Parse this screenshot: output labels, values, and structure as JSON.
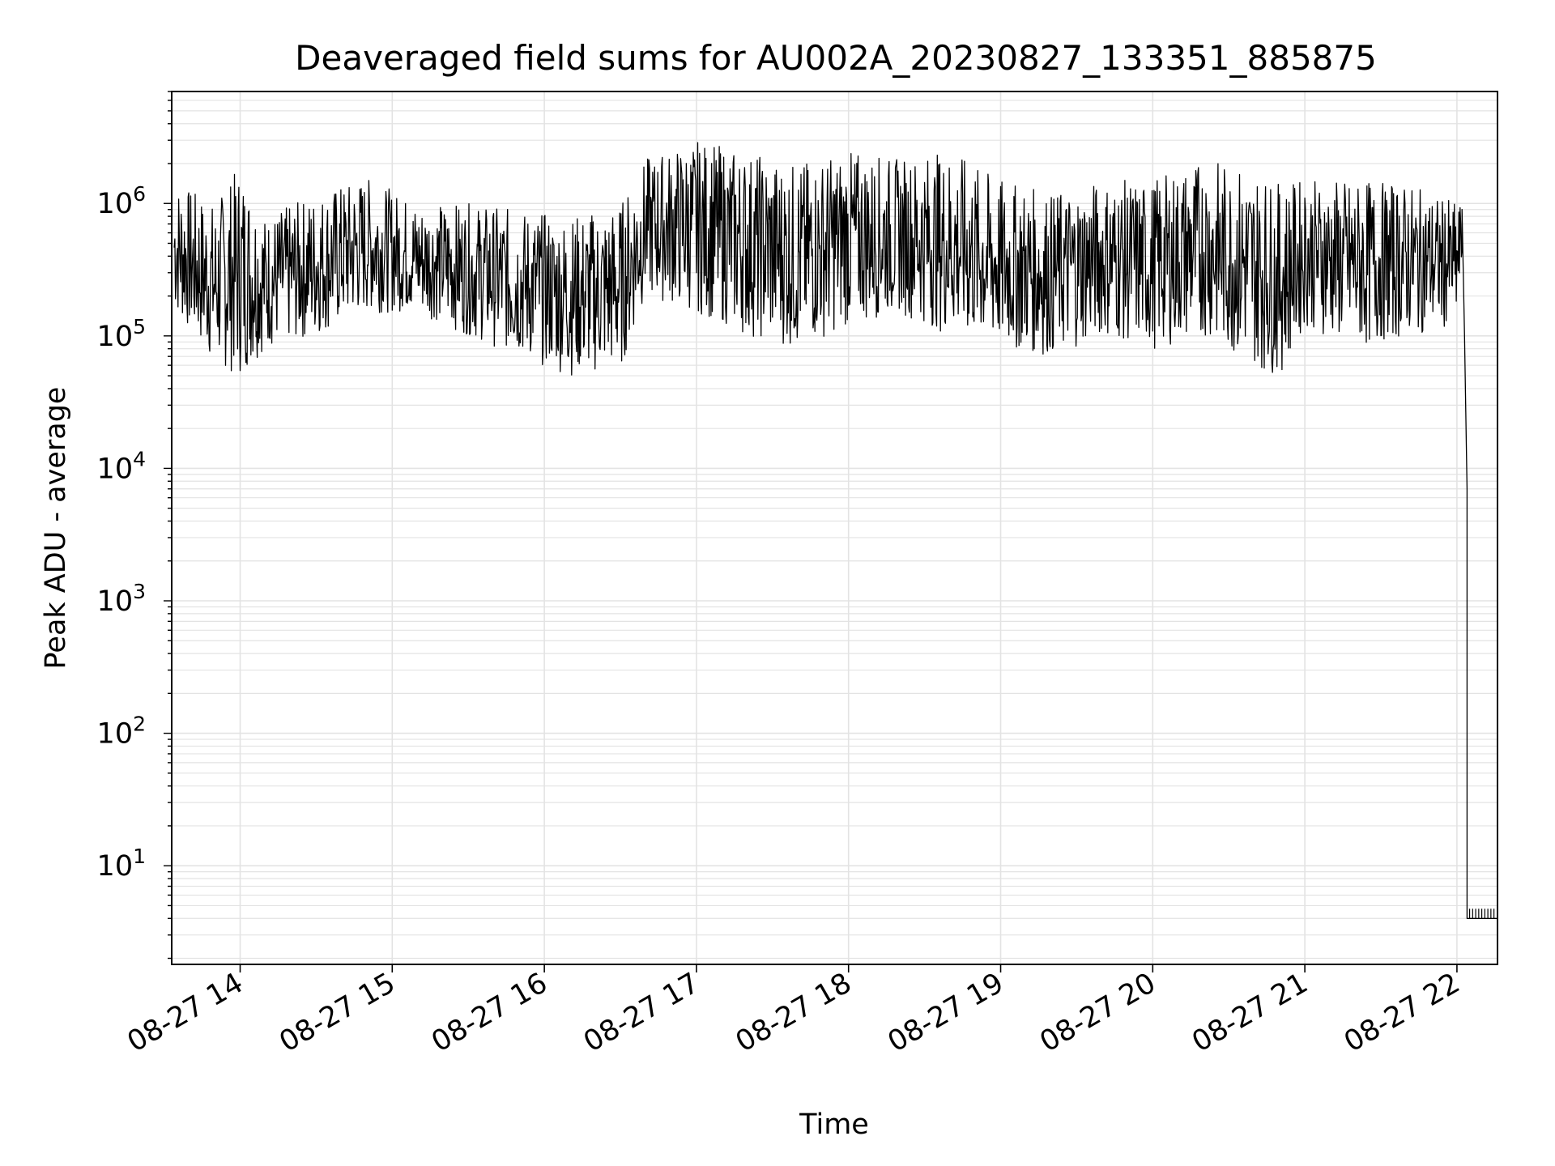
{
  "chart_data": {
    "type": "line",
    "title": "Deaveraged field sums for AU002A_20230827_133351_885875",
    "xlabel": "Time",
    "ylabel": "Peak ADU - average",
    "yscale": "log",
    "grid": true,
    "xlim": [
      "08-27 13:33",
      "08-27 22:16"
    ],
    "ylim": [
      1.8,
      7000000
    ],
    "x_ticks": [
      {
        "time": "08-27 14:00",
        "label": "08-27 14"
      },
      {
        "time": "08-27 15:00",
        "label": "08-27 15"
      },
      {
        "time": "08-27 16:00",
        "label": "08-27 16"
      },
      {
        "time": "08-27 17:00",
        "label": "08-27 17"
      },
      {
        "time": "08-27 18:00",
        "label": "08-27 18"
      },
      {
        "time": "08-27 19:00",
        "label": "08-27 19"
      },
      {
        "time": "08-27 20:00",
        "label": "08-27 20"
      },
      {
        "time": "08-27 21:00",
        "label": "08-27 21"
      },
      {
        "time": "08-27 22:00",
        "label": "08-27 22"
      }
    ],
    "y_ticks": [
      {
        "value": 10,
        "base": "10",
        "exponent": "1"
      },
      {
        "value": 100,
        "base": "10",
        "exponent": "2"
      },
      {
        "value": 1000,
        "base": "10",
        "exponent": "3"
      },
      {
        "value": 10000,
        "base": "10",
        "exponent": "4"
      },
      {
        "value": 100000,
        "base": "10",
        "exponent": "5"
      },
      {
        "value": 1000000,
        "base": "10",
        "exponent": "6"
      }
    ],
    "series": [
      {
        "color": "#000000",
        "points": [
          [
            "08-27 13:34",
            400000
          ],
          [
            "08-27 13:40",
            900000
          ],
          [
            "08-27 13:46",
            250000
          ],
          [
            "08-27 13:52",
            350000
          ],
          [
            "08-27 14:00",
            300000
          ],
          [
            "08-27 14:06",
            1500000
          ],
          [
            "08-27 14:12",
            250000
          ],
          [
            "08-27 14:18",
            350000
          ],
          [
            "08-27 14:24",
            500000
          ],
          [
            "08-27 14:30",
            600000
          ],
          [
            "08-27 14:36",
            550000
          ],
          [
            "08-27 14:42",
            500000
          ],
          [
            "08-27 14:48",
            700000
          ],
          [
            "08-27 14:54",
            800000
          ],
          [
            "08-27 15:00",
            500000
          ],
          [
            "08-27 15:06",
            600000
          ],
          [
            "08-27 15:12",
            450000
          ],
          [
            "08-27 15:18",
            550000
          ],
          [
            "08-27 15:24",
            500000
          ],
          [
            "08-27 15:30",
            400000
          ],
          [
            "08-27 15:36",
            500000
          ],
          [
            "08-27 15:42",
            350000
          ],
          [
            "08-27 15:48",
            450000
          ],
          [
            "08-27 15:54",
            300000
          ],
          [
            "08-27 16:00",
            250000
          ],
          [
            "08-27 16:06",
            200000
          ],
          [
            "08-27 16:12",
            180000
          ],
          [
            "08-27 16:18",
            200000
          ],
          [
            "08-27 16:24",
            220000
          ],
          [
            "08-27 16:30",
            200000
          ],
          [
            "08-27 16:36",
            600000
          ],
          [
            "08-27 16:42",
            1000000
          ],
          [
            "08-27 16:48",
            700000
          ],
          [
            "08-27 16:54",
            600000
          ],
          [
            "08-27 17:00",
            900000
          ],
          [
            "08-27 17:06",
            1200000
          ],
          [
            "08-27 17:12",
            1000000
          ],
          [
            "08-27 17:18",
            800000
          ],
          [
            "08-27 17:24",
            600000
          ],
          [
            "08-27 17:30",
            700000
          ],
          [
            "08-27 17:36",
            800000
          ],
          [
            "08-27 17:42",
            600000
          ],
          [
            "08-27 17:48",
            800000
          ],
          [
            "08-27 17:54",
            700000
          ],
          [
            "08-27 18:00",
            600000
          ],
          [
            "08-27 18:06",
            900000
          ],
          [
            "08-27 18:12",
            1000000
          ],
          [
            "08-27 18:18",
            800000
          ],
          [
            "08-27 18:24",
            700000
          ],
          [
            "08-27 18:30",
            500000
          ],
          [
            "08-27 18:36",
            600000
          ],
          [
            "08-27 18:42",
            800000
          ],
          [
            "08-27 18:48",
            700000
          ],
          [
            "08-27 18:54",
            500000
          ],
          [
            "08-27 19:00",
            400000
          ],
          [
            "08-27 19:06",
            350000
          ],
          [
            "08-27 19:12",
            400000
          ],
          [
            "08-27 19:18",
            450000
          ],
          [
            "08-27 19:24",
            400000
          ],
          [
            "08-27 19:30",
            500000
          ],
          [
            "08-27 19:36",
            600000
          ],
          [
            "08-27 19:42",
            500000
          ],
          [
            "08-27 19:48",
            600000
          ],
          [
            "08-27 19:54",
            500000
          ],
          [
            "08-27 20:00",
            450000
          ],
          [
            "08-27 20:06",
            900000
          ],
          [
            "08-27 20:12",
            1200000
          ],
          [
            "08-27 20:18",
            800000
          ],
          [
            "08-27 20:24",
            700000
          ],
          [
            "08-27 20:30",
            500000
          ],
          [
            "08-27 20:36",
            450000
          ],
          [
            "08-27 20:42",
            250000
          ],
          [
            "08-27 20:48",
            150000
          ],
          [
            "08-27 20:54",
            400000
          ],
          [
            "08-27 21:00",
            500000
          ],
          [
            "08-27 21:06",
            600000
          ],
          [
            "08-27 21:12",
            400000
          ],
          [
            "08-27 21:18",
            550000
          ],
          [
            "08-27 21:24",
            500000
          ],
          [
            "08-27 21:30",
            450000
          ],
          [
            "08-27 21:36",
            600000
          ],
          [
            "08-27 21:42",
            500000
          ],
          [
            "08-27 21:48",
            500000
          ],
          [
            "08-27 21:54",
            2000000
          ],
          [
            "08-27 21:58",
            400000
          ],
          [
            "08-27 22:00",
            800000
          ],
          [
            "08-27 22:02",
            900000
          ],
          [
            "08-27 22:03",
            100000
          ],
          [
            "08-27 22:04",
            7000
          ],
          [
            "08-27 22:04",
            4
          ],
          [
            "08-27 22:16",
            4
          ]
        ],
        "envelope": {
          "resolution_minutes": 1,
          "low_anchors": [
            [
              "08-27 13:34",
              150000
            ],
            [
              "08-27 13:50",
              60000
            ],
            [
              "08-27 14:00",
              50000
            ],
            [
              "08-27 14:10",
              80000
            ],
            [
              "08-27 14:30",
              100000
            ],
            [
              "08-27 14:50",
              150000
            ],
            [
              "08-27 15:10",
              150000
            ],
            [
              "08-27 15:30",
              100000
            ],
            [
              "08-27 15:50",
              70000
            ],
            [
              "08-27 16:10",
              50000
            ],
            [
              "08-27 16:30",
              55000
            ],
            [
              "08-27 16:40",
              200000
            ],
            [
              "08-27 17:00",
              150000
            ],
            [
              "08-27 17:20",
              100000
            ],
            [
              "08-27 17:40",
              80000
            ],
            [
              "08-27 18:00",
              120000
            ],
            [
              "08-27 18:20",
              150000
            ],
            [
              "08-27 18:40",
              100000
            ],
            [
              "08-27 19:00",
              80000
            ],
            [
              "08-27 19:20",
              70000
            ],
            [
              "08-27 19:40",
              100000
            ],
            [
              "08-27 20:00",
              80000
            ],
            [
              "08-27 20:20",
              100000
            ],
            [
              "08-27 20:40",
              60000
            ],
            [
              "08-27 20:50",
              50000
            ],
            [
              "08-27 21:00",
              120000
            ],
            [
              "08-27 21:20",
              80000
            ],
            [
              "08-27 21:40",
              100000
            ],
            [
              "08-27 22:00",
              120000
            ],
            [
              "08-27 22:02",
              300000
            ]
          ],
          "high_anchors": [
            [
              "08-27 13:34",
              1500000
            ],
            [
              "08-27 13:50",
              1000000
            ],
            [
              "08-27 14:00",
              2000000
            ],
            [
              "08-27 14:10",
              800000
            ],
            [
              "08-27 14:30",
              1200000
            ],
            [
              "08-27 14:50",
              1600000
            ],
            [
              "08-27 15:10",
              1000000
            ],
            [
              "08-27 15:30",
              1000000
            ],
            [
              "08-27 15:50",
              900000
            ],
            [
              "08-27 16:10",
              800000
            ],
            [
              "08-27 16:30",
              1000000
            ],
            [
              "08-27 16:40",
              2200000
            ],
            [
              "08-27 17:00",
              3000000
            ],
            [
              "08-27 17:20",
              2500000
            ],
            [
              "08-27 17:40",
              2000000
            ],
            [
              "08-27 18:00",
              2500000
            ],
            [
              "08-27 18:20",
              2200000
            ],
            [
              "08-27 18:40",
              2500000
            ],
            [
              "08-27 19:00",
              1500000
            ],
            [
              "08-27 19:20",
              1200000
            ],
            [
              "08-27 19:40",
              1500000
            ],
            [
              "08-27 20:00",
              1500000
            ],
            [
              "08-27 20:20",
              2200000
            ],
            [
              "08-27 20:40",
              1800000
            ],
            [
              "08-27 20:50",
              1400000
            ],
            [
              "08-27 21:00",
              1500000
            ],
            [
              "08-27 21:20",
              1500000
            ],
            [
              "08-27 21:40",
              1400000
            ],
            [
              "08-27 22:00",
              1000000
            ],
            [
              "08-27 22:02",
              1000000
            ]
          ]
        }
      }
    ]
  }
}
